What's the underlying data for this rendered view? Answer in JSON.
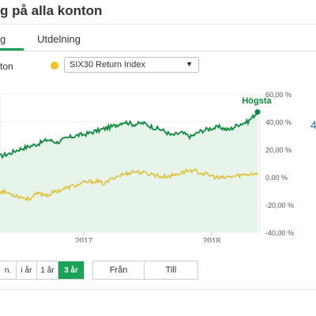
{
  "header": {
    "title": "g på alla konton"
  },
  "tabs": [
    {
      "label": "g",
      "active": true
    },
    {
      "label": "Utdelning",
      "active": false
    }
  ],
  "compare": {
    "account_label": "ton",
    "index_color": "#f0c419",
    "index_select_value": "SIX30 Return Index",
    "arrow_icon": "triangle-down"
  },
  "chart_data": {
    "type": "line",
    "x_labels": [
      "2017",
      "2018"
    ],
    "y_ticks": [
      "60,00 %",
      "40,00 %",
      "20,00 %",
      "0,00 %",
      "-20,00 %",
      "-40,00 %"
    ],
    "ylim": [
      -40,
      60
    ],
    "annotation": "Högsta",
    "colors": {
      "account": "#0e8a3b",
      "index": "#e2b825",
      "fill": "#e6f4ea"
    },
    "series": [
      {
        "values": [
          15,
          17,
          20,
          22,
          24,
          27,
          25,
          28,
          30,
          31,
          33,
          35,
          37,
          40,
          38,
          39,
          36,
          34,
          30,
          32,
          29,
          33,
          35,
          36,
          34,
          38,
          40,
          47
        ]
      },
      {
        "values": [
          -10,
          -12,
          -14,
          -16,
          -12,
          -13,
          -10,
          -8,
          -6,
          -4,
          -3,
          -5,
          0,
          2,
          4,
          3,
          2,
          0,
          1,
          3,
          5,
          3,
          1,
          -1,
          0,
          1,
          2,
          3
        ]
      }
    ]
  },
  "range_buttons": [
    {
      "label": "n.",
      "active": false
    },
    {
      "label": "i år",
      "active": false
    },
    {
      "label": "1 år",
      "active": false
    },
    {
      "label": "3 år",
      "active": true
    }
  ],
  "date_range": {
    "from_label": "Från",
    "to_label": "Till"
  },
  "side_fragment": "4"
}
